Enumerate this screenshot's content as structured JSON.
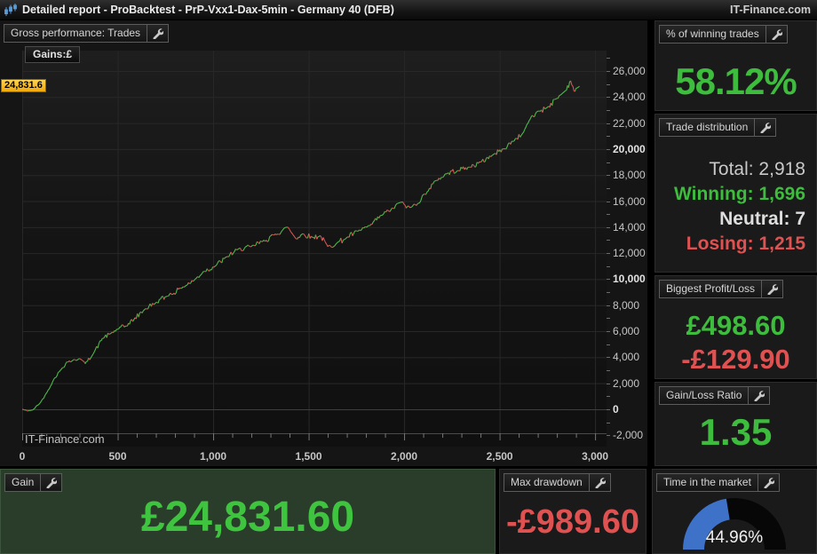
{
  "title_bar": {
    "title": "Detailed report - ProBacktest - PrP-Vxx1-Dax-5min - Germany 40 (DFB)",
    "brand": "IT-Finance.com"
  },
  "chart_panel": {
    "header": "Gross performance: Trades",
    "tab": "Gains:£",
    "watermark": "IT-Finance.com",
    "current_value_label": "24,831.6"
  },
  "chart_data": {
    "type": "line",
    "title": "Gross performance: Trades",
    "series_name": "Gains:£",
    "xlim": [
      0,
      3060
    ],
    "ylim": [
      -2870,
      27570
    ],
    "grid": true,
    "grid_x_step_units": 500,
    "grid_y_step_units": 2000,
    "x_ticks": [
      {
        "v": 0,
        "label": "0"
      },
      {
        "v": 500,
        "label": "500"
      },
      {
        "v": 1000,
        "label": "1,000"
      },
      {
        "v": 1500,
        "label": "1,500"
      },
      {
        "v": 2000,
        "label": "2,000"
      },
      {
        "v": 2500,
        "label": "2,500"
      },
      {
        "v": 3000,
        "label": "3,000"
      }
    ],
    "y_ticks": [
      {
        "v": -2000,
        "label": "-2,000",
        "bold": false
      },
      {
        "v": 0,
        "label": "0",
        "bold": true
      },
      {
        "v": 2000,
        "label": "2,000",
        "bold": false
      },
      {
        "v": 4000,
        "label": "4,000",
        "bold": false
      },
      {
        "v": 6000,
        "label": "6,000",
        "bold": false
      },
      {
        "v": 8000,
        "label": "8,000",
        "bold": false
      },
      {
        "v": 10000,
        "label": "10,000",
        "bold": true
      },
      {
        "v": 12000,
        "label": "12,000",
        "bold": false
      },
      {
        "v": 14000,
        "label": "14,000",
        "bold": false
      },
      {
        "v": 16000,
        "label": "16,000",
        "bold": false
      },
      {
        "v": 18000,
        "label": "18,000",
        "bold": false
      },
      {
        "v": 20000,
        "label": "20,000",
        "bold": true
      },
      {
        "v": 22000,
        "label": "22,000",
        "bold": false
      },
      {
        "v": 24000,
        "label": "24,000",
        "bold": false
      },
      {
        "v": 26000,
        "label": "26,000",
        "bold": false
      }
    ],
    "zero_line_value": 0,
    "final_value": 24831.6,
    "total_trades": 2918,
    "equity_curve_checkpoints": [
      [
        0,
        0
      ],
      [
        25,
        -120
      ],
      [
        55,
        -60
      ],
      [
        95,
        500
      ],
      [
        130,
        1300
      ],
      [
        165,
        2300
      ],
      [
        200,
        3000
      ],
      [
        235,
        3650
      ],
      [
        265,
        3750
      ],
      [
        300,
        3900
      ],
      [
        330,
        3500
      ],
      [
        365,
        4100
      ],
      [
        420,
        5450
      ],
      [
        460,
        5800
      ],
      [
        500,
        6150
      ],
      [
        545,
        6400
      ],
      [
        585,
        6900
      ],
      [
        640,
        7650
      ],
      [
        700,
        8200
      ],
      [
        760,
        8700
      ],
      [
        830,
        9300
      ],
      [
        900,
        9900
      ],
      [
        950,
        10600
      ],
      [
        1010,
        11000
      ],
      [
        1070,
        11700
      ],
      [
        1130,
        12300
      ],
      [
        1200,
        12500
      ],
      [
        1260,
        12900
      ],
      [
        1320,
        13400
      ],
      [
        1390,
        14000
      ],
      [
        1435,
        13100
      ],
      [
        1470,
        13500
      ],
      [
        1520,
        13200
      ],
      [
        1560,
        13350
      ],
      [
        1600,
        12500
      ],
      [
        1650,
        12800
      ],
      [
        1700,
        13200
      ],
      [
        1760,
        13700
      ],
      [
        1820,
        14100
      ],
      [
        1880,
        14900
      ],
      [
        1930,
        15300
      ],
      [
        1980,
        15900
      ],
      [
        2030,
        15500
      ],
      [
        2070,
        15800
      ],
      [
        2120,
        16700
      ],
      [
        2170,
        17600
      ],
      [
        2220,
        18100
      ],
      [
        2280,
        18350
      ],
      [
        2340,
        18600
      ],
      [
        2400,
        19000
      ],
      [
        2460,
        19500
      ],
      [
        2520,
        20000
      ],
      [
        2570,
        20600
      ],
      [
        2620,
        21200
      ],
      [
        2660,
        22300
      ],
      [
        2700,
        22900
      ],
      [
        2750,
        23200
      ],
      [
        2800,
        23900
      ],
      [
        2845,
        24500
      ],
      [
        2872,
        25250
      ],
      [
        2890,
        24450
      ],
      [
        2905,
        24700
      ],
      [
        2918,
        24831.6
      ]
    ],
    "colors": {
      "up": "#4db84d",
      "down": "#d45252",
      "zero_line": "#2b2bdd",
      "grid": "#282828",
      "axis": "#4a4a4a",
      "current_value_bg": "#f2a90a"
    }
  },
  "sidebar": {
    "panels": [
      {
        "header": "% of winning trades",
        "value": "58.12%"
      },
      {
        "header": "Trade distribution",
        "rows": [
          {
            "label": "Total: 2,918"
          },
          {
            "label": "Winning: 1,696"
          },
          {
            "label": "Neutral: 7"
          },
          {
            "label": "Losing: 1,215"
          }
        ]
      },
      {
        "header": "Biggest Profit/Loss",
        "profit": "£498.60",
        "loss": "-£129.90"
      },
      {
        "header": "Gain/Loss Ratio",
        "value": "1.35"
      }
    ]
  },
  "bottom": {
    "gain": {
      "header": "Gain",
      "value": "£24,831.60"
    },
    "drawdown": {
      "header": "Max drawdown",
      "value": "-£989.60"
    },
    "time_in_market": {
      "header": "Time in the market",
      "value": "44.96%",
      "percent": 44.96
    }
  },
  "colors": {
    "positive": "#3dbc3d",
    "negative": "#e05252",
    "neutral_text": "#dedede",
    "gauge_fill": "#3e72c8",
    "gauge_empty": "#070707"
  }
}
